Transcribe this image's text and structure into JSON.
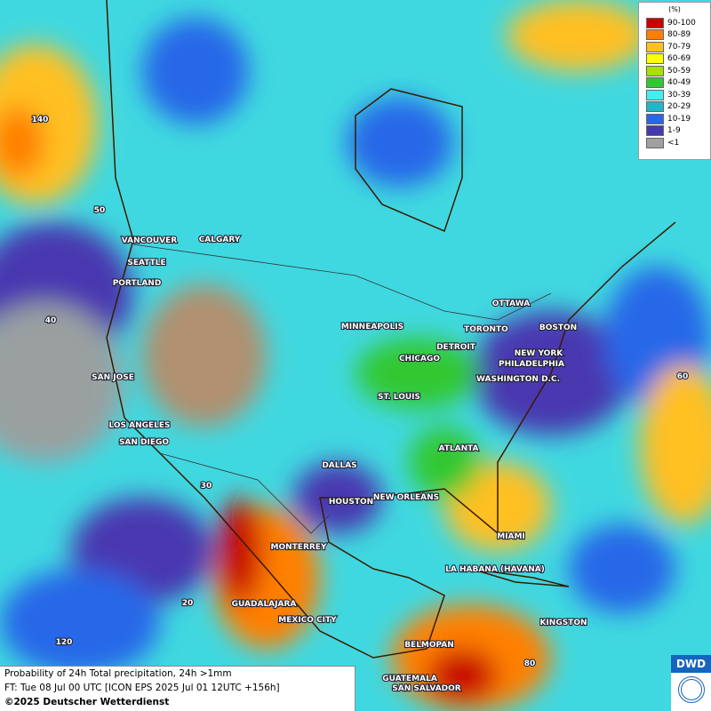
{
  "map": {
    "cities": [
      "VANCOUVER",
      "CALGARY",
      "SEATTLE",
      "PORTLAND",
      "MINNEAPOLIS",
      "OTTAWA",
      "TORONTO",
      "BOSTON",
      "DETROIT",
      "NEW YORK",
      "PHILADELPHIA",
      "CHICAGO",
      "WASHINGTON D.C.",
      "SAN JOSE",
      "ST. LOUIS",
      "LOS ANGELES",
      "SAN DIEGO",
      "ATLANTA",
      "DALLAS",
      "HOUSTON",
      "NEW ORLEANS",
      "MIAMI",
      "MONTERREY",
      "LA HABANA (HAVANA)",
      "GUADALAJARA",
      "MEXICO CITY",
      "KINGSTON",
      "BELMOPAN",
      "GUATEMALA",
      "SAN SALVADOR"
    ],
    "grid_labels": [
      "140",
      "50",
      "40",
      "60",
      "30",
      "20",
      "120",
      "80"
    ]
  },
  "legend": {
    "title": "(%)",
    "items": [
      {
        "label": "90-100",
        "color": "#c80000"
      },
      {
        "label": "80-89",
        "color": "#ff8000"
      },
      {
        "label": "70-79",
        "color": "#ffc020"
      },
      {
        "label": "60-69",
        "color": "#ffff00"
      },
      {
        "label": "50-59",
        "color": "#a8e000"
      },
      {
        "label": "40-49",
        "color": "#30c830"
      },
      {
        "label": "30-39",
        "color": "#40f0f0"
      },
      {
        "label": "20-29",
        "color": "#20b8c8"
      },
      {
        "label": "10-19",
        "color": "#2868e8"
      },
      {
        "label": "1-9",
        "color": "#4838b0"
      },
      {
        "label": "<1",
        "color": "#a0a0a0"
      }
    ]
  },
  "caption": {
    "line1": "Probability of 24h Total precipitation, 24h >1mm",
    "line2": "FT: Tue 08 Jul 00 UTC [ICON EPS 2025 Jul 01 12UTC +156h]",
    "line3": "©2025 Deutscher Wetterdienst"
  },
  "logo": "DWD"
}
